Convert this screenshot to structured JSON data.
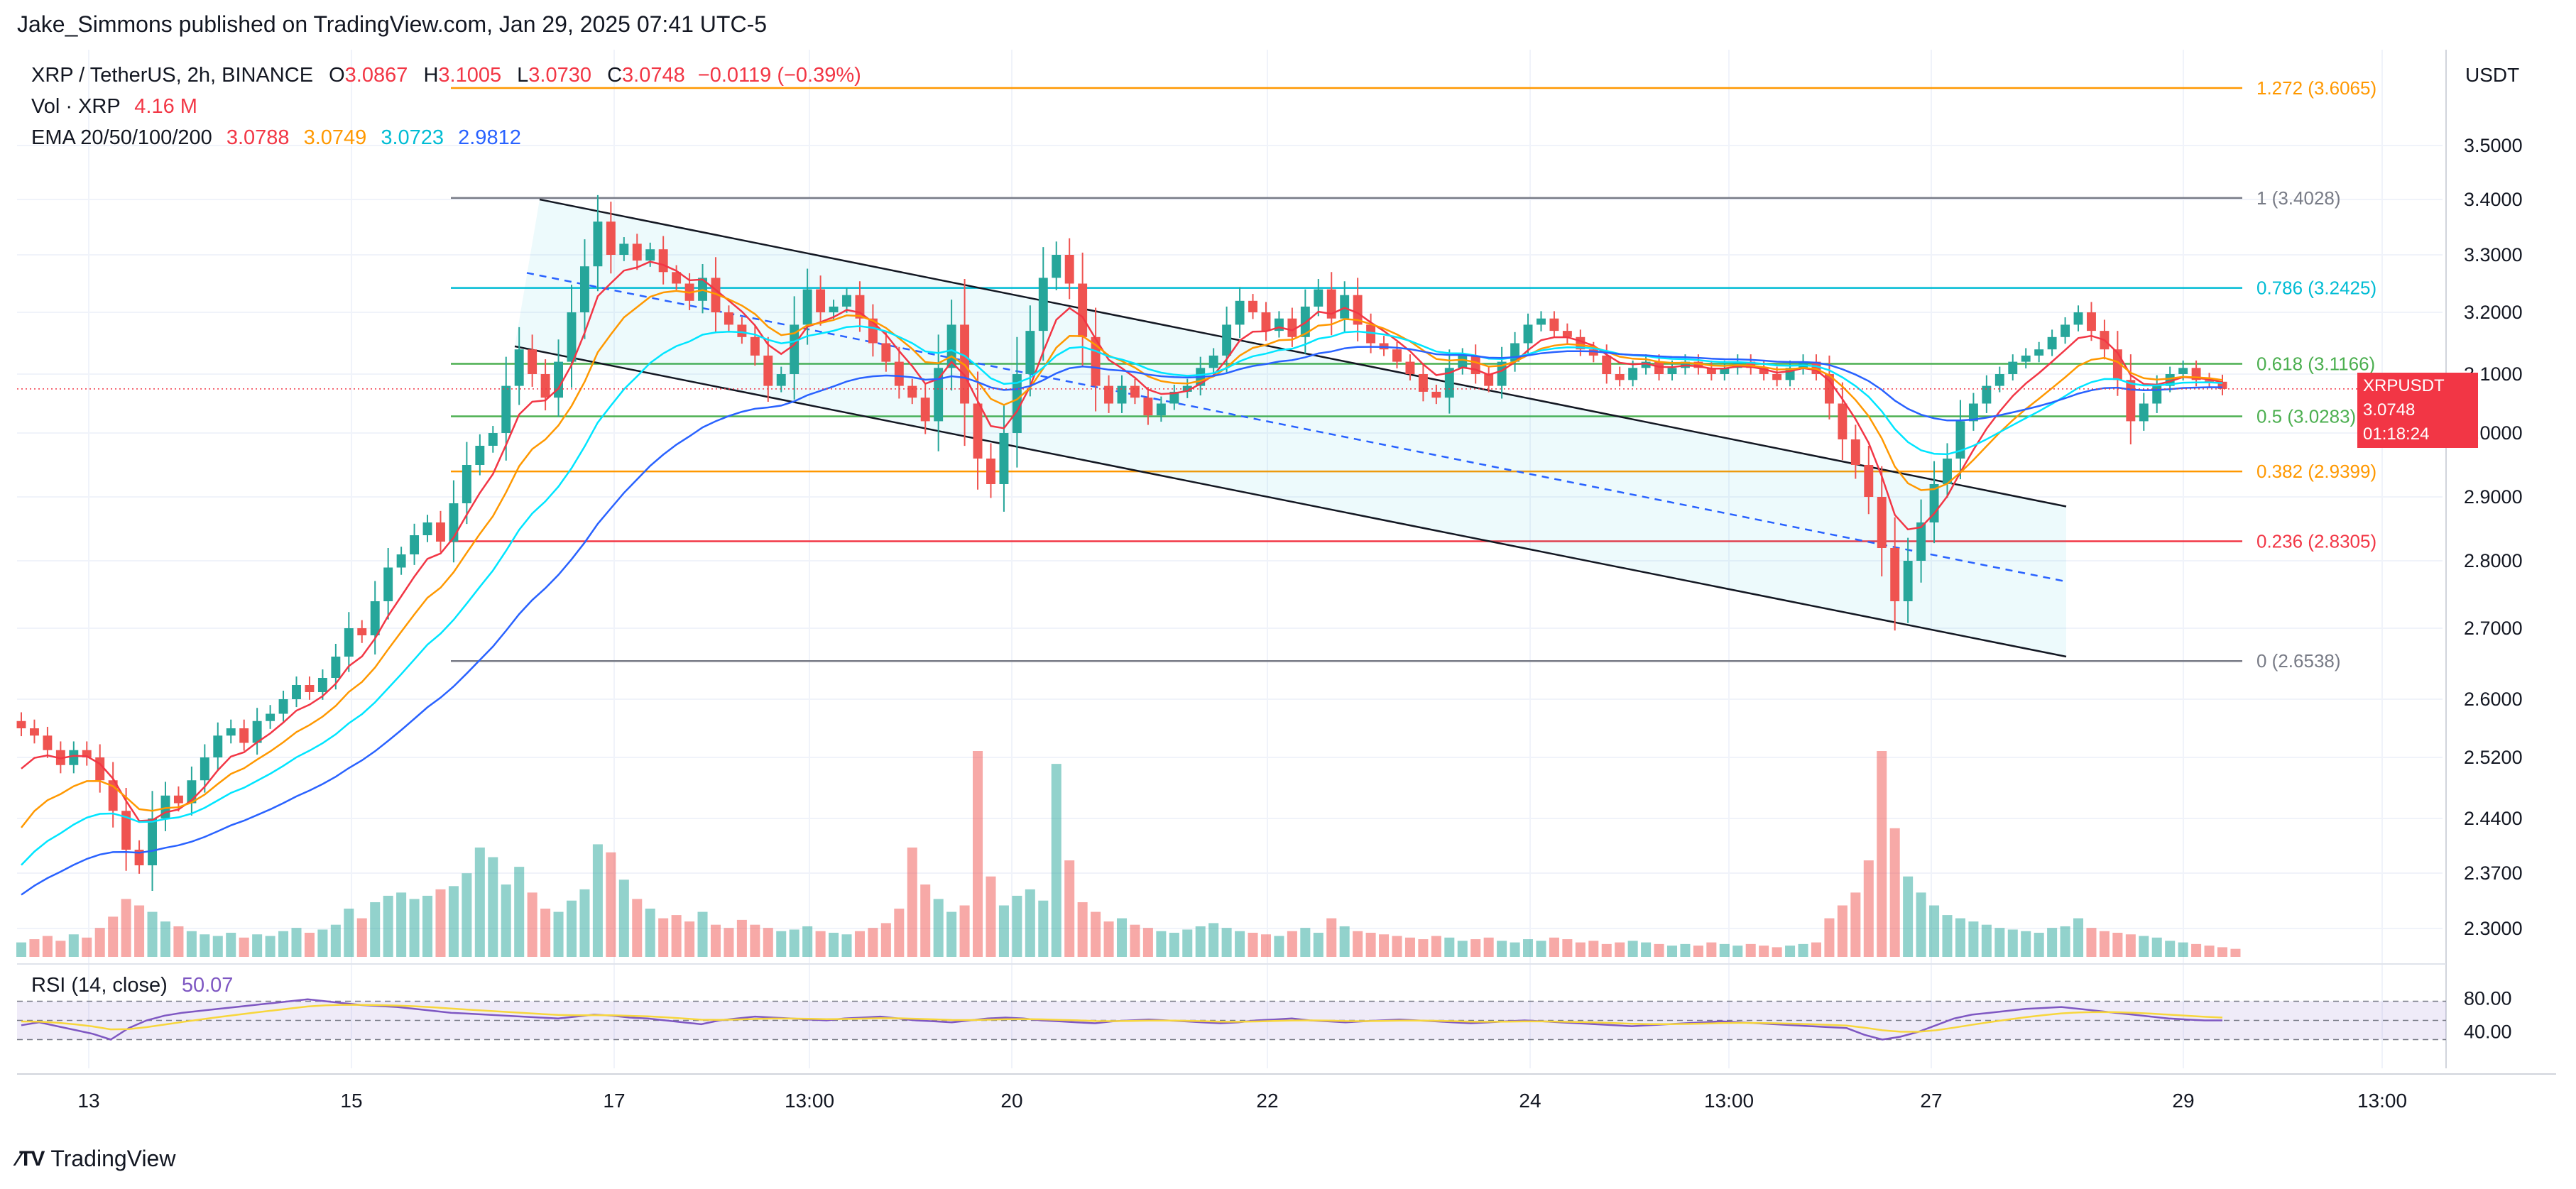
{
  "header": {
    "publisher": "Jake_Simmons published on TradingView.com, Jan 29, 2025 07:41 UTC-5",
    "symbol": "XRP / TetherUS, 2h, BINANCE",
    "ohlc": {
      "o_label": "O",
      "o": "3.0867",
      "h_label": "H",
      "h": "3.1005",
      "l_label": "L",
      "l": "3.0730",
      "c_label": "C",
      "c": "3.0748",
      "change": "−0.0119 (−0.39%)"
    },
    "vol_label": "Vol · XRP",
    "vol_value": "4.16 M",
    "ema_label": "EMA 20/50/100/200",
    "ema_values": [
      "3.0788",
      "3.0749",
      "3.0723",
      "2.9812"
    ],
    "rsi_label": "RSI (14, close)",
    "rsi_value": "50.07",
    "currency": "USDT",
    "brand": "TradingView",
    "last_price_tag": {
      "symbol": "XRPUSDT",
      "price": "3.0748",
      "countdown": "01:18:24"
    }
  },
  "colors": {
    "up": "#26a69a",
    "down": "#ef5350",
    "ema20": "#f23645",
    "ema50": "#ff9800",
    "ema100": "#00e5ff",
    "ema200": "#2962ff",
    "rsi": "#7e57c2",
    "rsi_ma": "#f7d63c"
  },
  "chart_data": {
    "type": "candlestick",
    "x_ticks": [
      "13",
      "15",
      "17",
      "13:00",
      "20",
      "22",
      "24",
      "13:00",
      "27",
      "29",
      "13:00"
    ],
    "y_ticks": [
      "3.5000",
      "3.4000",
      "3.3000",
      "3.2000",
      "3.1000",
      "3.0000",
      "2.9000",
      "2.8000",
      "2.7000",
      "2.6000",
      "2.5200",
      "2.4400",
      "2.3700",
      "2.3000"
    ],
    "rsi_ticks": [
      "80.00",
      "40.00"
    ],
    "fib_levels": [
      {
        "label": "1.272 (3.6065)",
        "price": 3.6065,
        "color": "#ff9800"
      },
      {
        "label": "1 (3.4028)",
        "price": 3.4028,
        "color": "#787b86"
      },
      {
        "label": "0.786 (3.2425)",
        "price": 3.2425,
        "color": "#00bcd4"
      },
      {
        "label": "0.618 (3.1166)",
        "price": 3.1166,
        "color": "#4caf50"
      },
      {
        "label": "0.5 (3.0283)",
        "price": 3.0283,
        "color": "#4caf50"
      },
      {
        "label": "0.382 (2.9399)",
        "price": 2.9399,
        "color": "#ff9800"
      },
      {
        "label": "0.236 (2.8305)",
        "price": 2.8305,
        "color": "#f23645"
      },
      {
        "label": "0 (2.6538)",
        "price": 2.6538,
        "color": "#787b86"
      }
    ],
    "closes": [
      2.56,
      2.55,
      2.53,
      2.51,
      2.53,
      2.52,
      2.49,
      2.45,
      2.4,
      2.38,
      2.44,
      2.47,
      2.46,
      2.49,
      2.52,
      2.55,
      2.56,
      2.54,
      2.57,
      2.58,
      2.6,
      2.62,
      2.61,
      2.63,
      2.66,
      2.7,
      2.69,
      2.74,
      2.79,
      2.81,
      2.84,
      2.86,
      2.83,
      2.89,
      2.95,
      2.98,
      3.0,
      3.08,
      3.14,
      3.1,
      3.06,
      3.12,
      3.2,
      3.28,
      3.36,
      3.3,
      3.32,
      3.29,
      3.31,
      3.27,
      3.25,
      3.22,
      3.26,
      3.2,
      3.18,
      3.16,
      3.13,
      3.08,
      3.1,
      3.18,
      3.24,
      3.2,
      3.21,
      3.23,
      3.19,
      3.15,
      3.12,
      3.08,
      3.06,
      3.02,
      3.11,
      3.18,
      3.05,
      2.96,
      2.92,
      3.0,
      3.1,
      3.17,
      3.26,
      3.3,
      3.25,
      3.16,
      3.08,
      3.05,
      3.08,
      3.06,
      3.03,
      3.05,
      3.07,
      3.08,
      3.11,
      3.13,
      3.18,
      3.22,
      3.2,
      3.17,
      3.19,
      3.16,
      3.21,
      3.24,
      3.19,
      3.23,
      3.18,
      3.15,
      3.14,
      3.12,
      3.1,
      3.07,
      3.06,
      3.11,
      3.13,
      3.1,
      3.08,
      3.12,
      3.15,
      3.18,
      3.19,
      3.17,
      3.16,
      3.14,
      3.13,
      3.1,
      3.09,
      3.11,
      3.12,
      3.1,
      3.11,
      3.12,
      3.11,
      3.1,
      3.11,
      3.12,
      3.11,
      3.1,
      3.09,
      3.11,
      3.12,
      3.1,
      3.05,
      2.99,
      2.95,
      2.9,
      2.82,
      2.74,
      2.8,
      2.86,
      2.92,
      2.96,
      3.02,
      3.05,
      3.08,
      3.1,
      3.12,
      3.13,
      3.14,
      3.16,
      3.18,
      3.2,
      3.17,
      3.14,
      3.09,
      3.02,
      3.05,
      3.08,
      3.1,
      3.11,
      3.09,
      3.087,
      3.0748
    ],
    "volumes": [
      0.9,
      1.1,
      1.3,
      1.0,
      1.4,
      1.2,
      1.8,
      2.5,
      3.6,
      3.2,
      2.8,
      2.2,
      1.9,
      1.6,
      1.4,
      1.3,
      1.5,
      1.2,
      1.4,
      1.3,
      1.6,
      1.8,
      1.5,
      1.7,
      2.0,
      3.0,
      2.4,
      3.4,
      3.8,
      4.0,
      3.6,
      3.8,
      4.2,
      4.4,
      5.2,
      6.8,
      6.2,
      4.5,
      5.6,
      4.0,
      3.0,
      2.8,
      3.5,
      4.2,
      7.0,
      6.5,
      4.8,
      3.6,
      3.0,
      2.4,
      2.6,
      2.2,
      2.8,
      2.0,
      1.8,
      2.3,
      2.0,
      1.8,
      1.6,
      1.7,
      1.9,
      1.6,
      1.5,
      1.4,
      1.6,
      1.8,
      2.1,
      3.0,
      6.8,
      4.5,
      3.6,
      2.8,
      3.2,
      12.8,
      5.0,
      3.2,
      3.8,
      4.2,
      3.5,
      12.0,
      6.0,
      3.4,
      2.8,
      2.2,
      2.4,
      2.0,
      1.8,
      1.6,
      1.5,
      1.7,
      1.9,
      2.1,
      1.8,
      1.6,
      1.5,
      1.4,
      1.3,
      1.6,
      1.8,
      1.5,
      2.4,
      1.9,
      1.6,
      1.5,
      1.4,
      1.3,
      1.2,
      1.1,
      1.3,
      1.2,
      1.0,
      1.1,
      1.2,
      1.0,
      0.9,
      1.1,
      1.0,
      1.2,
      1.1,
      0.9,
      1.0,
      0.8,
      0.9,
      1.0,
      0.9,
      0.8,
      0.7,
      0.8,
      0.7,
      0.9,
      0.8,
      0.7,
      0.8,
      0.7,
      0.6,
      0.7,
      0.8,
      0.9,
      2.4,
      3.2,
      4.0,
      6.0,
      12.8,
      8.0,
      5.0,
      4.0,
      3.2,
      2.6,
      2.4,
      2.2,
      2.0,
      1.8,
      1.7,
      1.6,
      1.5,
      1.8,
      1.9,
      2.4,
      1.8,
      1.6,
      1.5,
      1.4,
      1.3,
      1.2,
      1.0,
      0.9,
      0.8,
      0.7,
      0.6,
      0.5
    ],
    "rsi": [
      45,
      48,
      44,
      40,
      36,
      30,
      42,
      50,
      55,
      58,
      60,
      62,
      64,
      66,
      68,
      70,
      72,
      70,
      68,
      66,
      65,
      64,
      62,
      60,
      58,
      57,
      56,
      55,
      54,
      53,
      52,
      54,
      56,
      55,
      53,
      52,
      50,
      48,
      46,
      50,
      52,
      54,
      53,
      52,
      51,
      50,
      52,
      53,
      54,
      52,
      50,
      49,
      48,
      50,
      52,
      53,
      52,
      50,
      49,
      48,
      47,
      49,
      50,
      51,
      50,
      49,
      48,
      47,
      48,
      50,
      51,
      52,
      50,
      49,
      48,
      49,
      50,
      51,
      50,
      49,
      48,
      47,
      48,
      49,
      50,
      49,
      48,
      47,
      46,
      45,
      44,
      45,
      46,
      47,
      48,
      49,
      48,
      47,
      46,
      45,
      44,
      43,
      42,
      35,
      30,
      33,
      38,
      45,
      52,
      56,
      58,
      60,
      62,
      63,
      64,
      62,
      60,
      58,
      56,
      54,
      52,
      51,
      50,
      50
    ]
  }
}
